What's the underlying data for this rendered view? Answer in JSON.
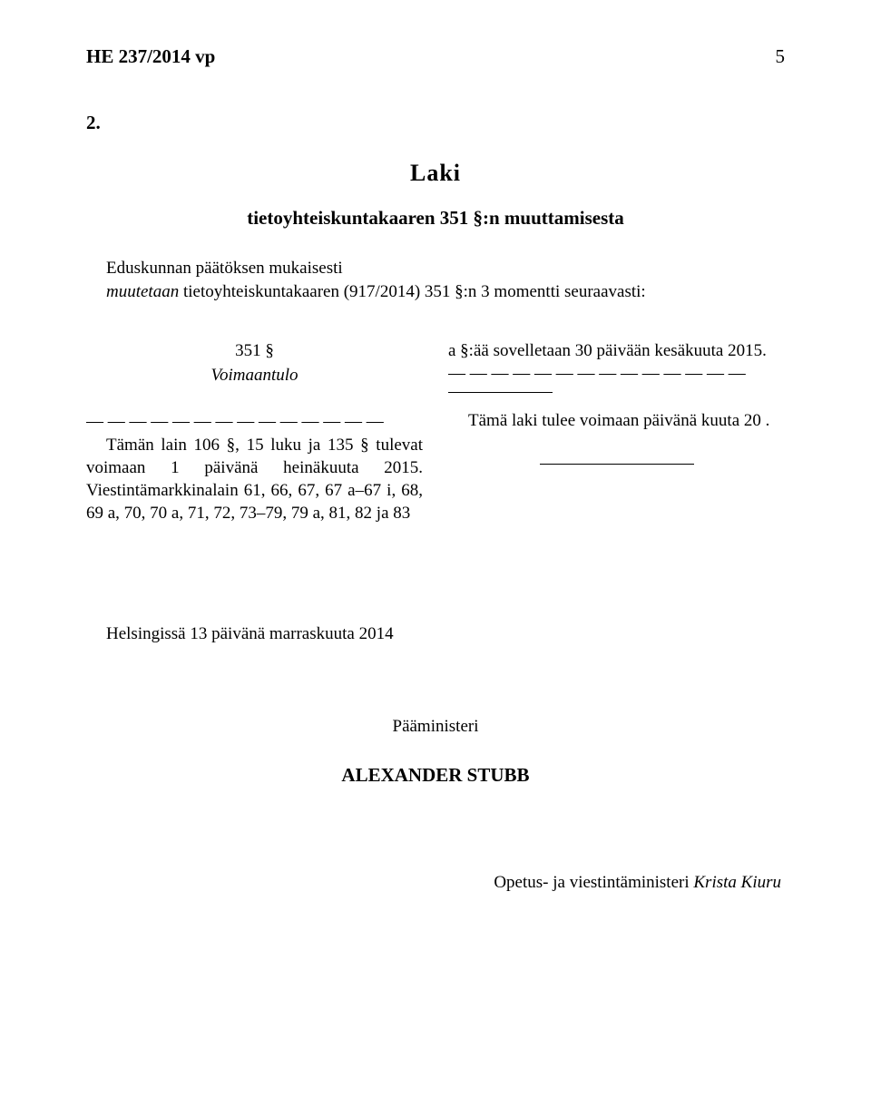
{
  "header": {
    "title": "HE 237/2014 vp",
    "page": "5"
  },
  "section_number": "2.",
  "law_label": "Laki",
  "law_title": "tietoyhteiskuntakaaren 351 §:n muuttamisesta",
  "intro_line1_a": "Eduskunnan päätöksen mukaisesti",
  "intro_line2_a": "muutetaan",
  "intro_line2_b": " tietoyhteiskuntakaaren (917/2014) 351 §:n 3 momentti seuraavasti:",
  "left_col": {
    "section": "351 §",
    "section_name": "Voimaantulo",
    "dashes": "— — — — — — — — — — — — — —",
    "para": "Tämän lain 106 §, 15 luku ja 135 § tulevat voimaan 1 päivänä heinäkuuta 2015. Viestintämarkkinalain 61, 66, 67, 67 a–67 i, 68, 69 a, 70, 70 a, 71, 72, 73–79, 79 a, 81, 82 ja 83"
  },
  "right_col": {
    "top_line": "a §:ää sovelletaan 30 päivään kesäkuuta 2015.",
    "dashes": "— — — — — — — — — — — — — —",
    "effect": "Tämä laki tulee voimaan   päivänä    kuuta 20  ."
  },
  "helsinki": "Helsingissä 13 päivänä marraskuuta 2014",
  "pm_label": "Pääministeri",
  "pm_name": "ALEXANDER STUBB",
  "minister_a": "Opetus- ja viestintäministeri ",
  "minister_b": "Krista Kiuru"
}
